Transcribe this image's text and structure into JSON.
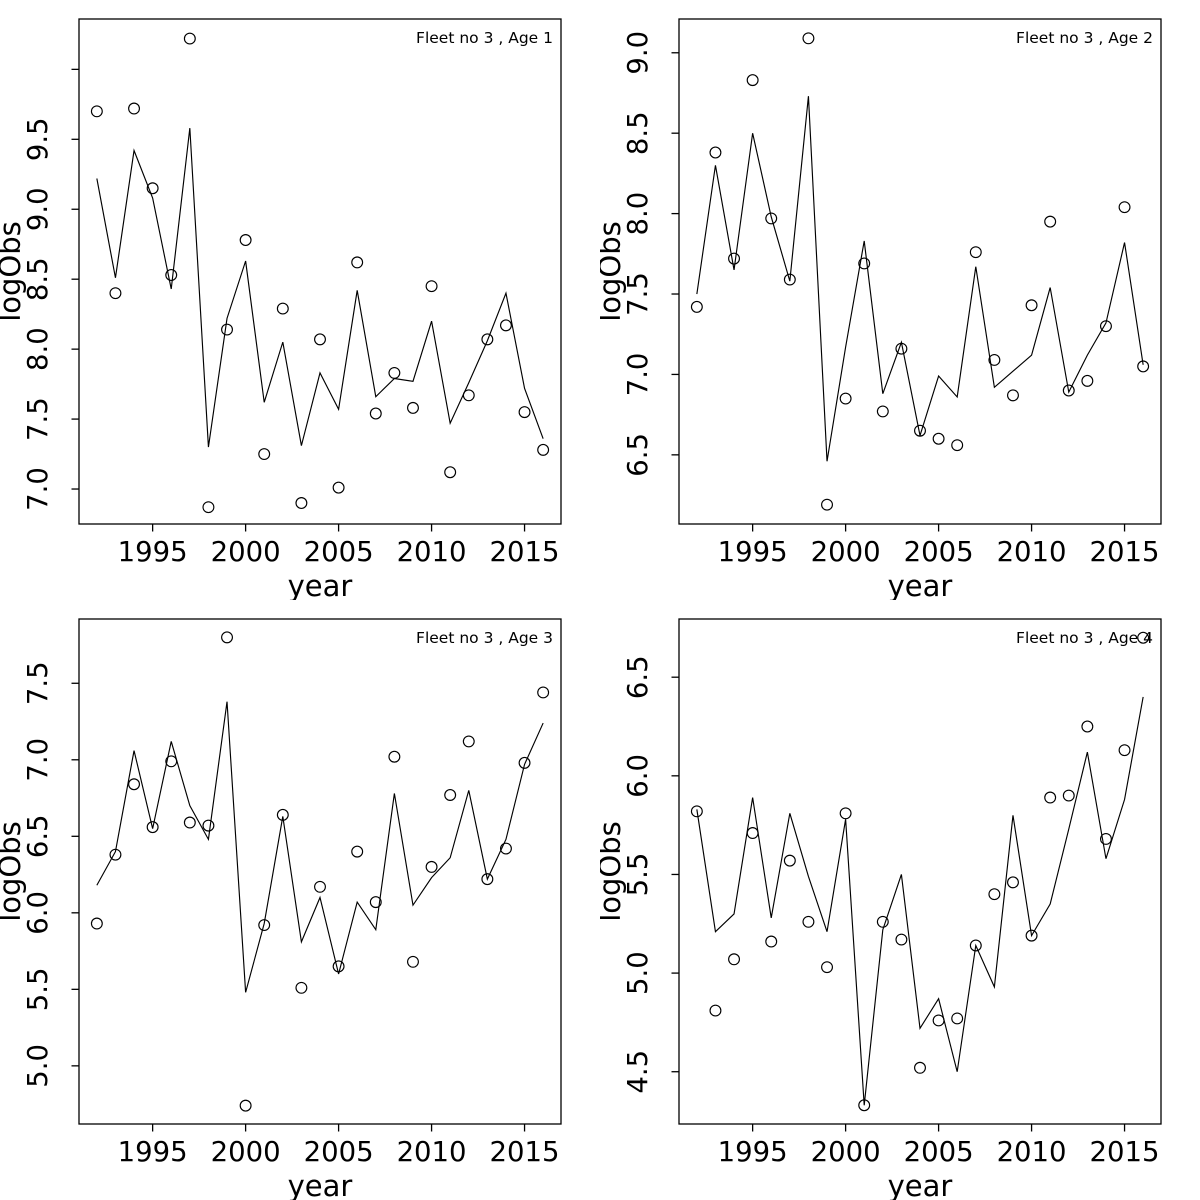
{
  "figure": {
    "background": "#ffffff",
    "foreground": "#000000",
    "panel_count": 4,
    "series_styles": {
      "observations": "open-circle-points",
      "fit": "solid-line"
    }
  },
  "chart_data": [
    {
      "type": "line",
      "title": "Fleet no 3 , Age 1",
      "xlabel": "year",
      "ylabel": "logObs",
      "x": [
        1992,
        1993,
        1994,
        1995,
        1996,
        1997,
        1998,
        1999,
        2000,
        2001,
        2002,
        2003,
        2004,
        2005,
        2006,
        2007,
        2008,
        2009,
        2010,
        2011,
        2012,
        2013,
        2014,
        2015,
        2016
      ],
      "series": [
        {
          "name": "observations",
          "style": "open-circle",
          "values": [
            9.7,
            8.4,
            9.72,
            9.15,
            8.53,
            10.22,
            6.87,
            8.14,
            8.78,
            7.25,
            8.29,
            6.9,
            8.07,
            7.01,
            8.62,
            7.54,
            7.83,
            7.58,
            8.45,
            7.12,
            7.67,
            8.07,
            8.17,
            7.55,
            7.28
          ]
        },
        {
          "name": "fit",
          "style": "line",
          "values": [
            9.22,
            8.51,
            9.42,
            9.08,
            8.43,
            9.58,
            7.3,
            8.22,
            8.63,
            7.62,
            8.05,
            7.31,
            7.83,
            7.57,
            8.42,
            7.66,
            7.79,
            7.77,
            8.2,
            7.47,
            7.76,
            8.06,
            8.4,
            7.72,
            7.36
          ]
        }
      ],
      "x_ticks": [
        1995,
        2000,
        2005,
        2010,
        2015
      ],
      "y_ticks": [
        7.0,
        7.5,
        8.0,
        8.5,
        9.0,
        9.5
      ],
      "unlabeled_y_ticks": [
        10.0
      ],
      "xlim": [
        1991.04,
        2016.96
      ],
      "ylim": [
        6.75,
        10.36
      ],
      "grid": false,
      "legend_position": "none"
    },
    {
      "type": "line",
      "title": "Fleet no 3 , Age 2",
      "xlabel": "year",
      "ylabel": "logObs",
      "x": [
        1992,
        1993,
        1994,
        1995,
        1996,
        1997,
        1998,
        1999,
        2000,
        2001,
        2002,
        2003,
        2004,
        2005,
        2006,
        2007,
        2008,
        2009,
        2010,
        2011,
        2012,
        2013,
        2014,
        2015,
        2016
      ],
      "series": [
        {
          "name": "observations",
          "style": "open-circle",
          "values": [
            7.42,
            8.38,
            7.72,
            8.83,
            7.97,
            7.59,
            9.09,
            6.19,
            6.85,
            7.69,
            6.77,
            7.16,
            6.65,
            6.6,
            6.56,
            7.76,
            7.09,
            6.87,
            7.43,
            7.95,
            6.9,
            6.96,
            7.3,
            8.04,
            7.05
          ]
        },
        {
          "name": "fit",
          "style": "line",
          "values": [
            7.5,
            8.3,
            7.65,
            8.5,
            7.98,
            7.58,
            8.73,
            6.46,
            7.17,
            7.83,
            6.88,
            7.2,
            6.62,
            6.99,
            6.86,
            7.67,
            6.92,
            7.02,
            7.12,
            7.54,
            6.89,
            7.12,
            7.32,
            7.82,
            7.06
          ]
        }
      ],
      "x_ticks": [
        1995,
        2000,
        2005,
        2010,
        2015
      ],
      "y_ticks": [
        6.5,
        7.0,
        7.5,
        8.0,
        8.5,
        9.0
      ],
      "unlabeled_y_ticks": [],
      "xlim": [
        1991.04,
        2016.96
      ],
      "ylim": [
        6.07,
        9.21
      ],
      "grid": false,
      "legend_position": "none"
    },
    {
      "type": "line",
      "title": "Fleet no 3 , Age 3",
      "xlabel": "year",
      "ylabel": "logObs",
      "x": [
        1992,
        1993,
        1994,
        1995,
        1996,
        1997,
        1998,
        1999,
        2000,
        2001,
        2002,
        2003,
        2004,
        2005,
        2006,
        2007,
        2008,
        2009,
        2010,
        2011,
        2012,
        2013,
        2014,
        2015,
        2016
      ],
      "series": [
        {
          "name": "observations",
          "style": "open-circle",
          "values": [
            5.93,
            6.38,
            6.84,
            6.56,
            6.99,
            6.59,
            6.57,
            7.8,
            4.74,
            5.92,
            6.64,
            5.51,
            6.17,
            5.65,
            6.4,
            6.07,
            7.02,
            5.68,
            6.3,
            6.77,
            7.12,
            6.22,
            6.42,
            6.98,
            7.44
          ]
        },
        {
          "name": "fit",
          "style": "line",
          "values": [
            6.18,
            6.4,
            7.06,
            6.55,
            7.12,
            6.7,
            6.48,
            7.38,
            5.48,
            5.93,
            6.63,
            5.81,
            6.1,
            5.6,
            6.07,
            5.89,
            6.78,
            6.05,
            6.23,
            6.36,
            6.8,
            6.22,
            6.48,
            6.97,
            7.24
          ]
        }
      ],
      "x_ticks": [
        1995,
        2000,
        2005,
        2010,
        2015
      ],
      "y_ticks": [
        5.0,
        5.5,
        6.0,
        6.5,
        7.0,
        7.5
      ],
      "unlabeled_y_ticks": [],
      "xlim": [
        1991.04,
        2016.96
      ],
      "ylim": [
        4.62,
        7.92
      ],
      "grid": false,
      "legend_position": "none"
    },
    {
      "type": "line",
      "title": "Fleet no 3 , Age 4",
      "xlabel": "year",
      "ylabel": "logObs",
      "x": [
        1992,
        1993,
        1994,
        1995,
        1996,
        1997,
        1998,
        1999,
        2000,
        2001,
        2002,
        2003,
        2004,
        2005,
        2006,
        2007,
        2008,
        2009,
        2010,
        2011,
        2012,
        2013,
        2014,
        2015,
        2016
      ],
      "series": [
        {
          "name": "observations",
          "style": "open-circle",
          "values": [
            5.82,
            4.81,
            5.07,
            5.71,
            5.16,
            5.57,
            5.26,
            5.03,
            5.81,
            4.33,
            5.26,
            5.17,
            4.52,
            4.76,
            4.77,
            5.14,
            5.4,
            5.46,
            5.19,
            5.89,
            5.9,
            6.25,
            5.68,
            6.13,
            6.7
          ]
        },
        {
          "name": "fit",
          "style": "line",
          "values": [
            5.83,
            5.21,
            5.3,
            5.89,
            5.28,
            5.81,
            5.49,
            5.21,
            5.78,
            4.33,
            5.22,
            5.5,
            4.72,
            4.87,
            4.5,
            5.14,
            4.93,
            5.8,
            5.19,
            5.35,
            5.73,
            6.12,
            5.58,
            5.88,
            6.4
          ]
        }
      ],
      "x_ticks": [
        1995,
        2000,
        2005,
        2010,
        2015
      ],
      "y_ticks": [
        4.5,
        5.0,
        5.5,
        6.0,
        6.5
      ],
      "unlabeled_y_ticks": [],
      "xlim": [
        1991.04,
        2016.96
      ],
      "ylim": [
        4.235,
        6.795
      ],
      "grid": false,
      "legend_position": "none"
    }
  ]
}
